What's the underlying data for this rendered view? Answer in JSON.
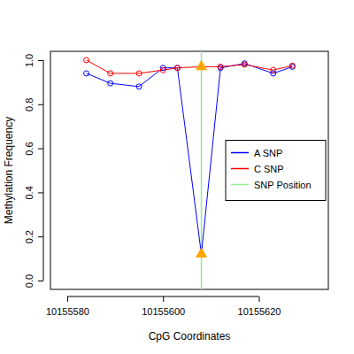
{
  "chart_data": {
    "type": "line",
    "x_label": "CpG Coordinates",
    "y_label": "Methylation Frequency",
    "x": [
      10155584,
      10155589,
      10155595,
      10155600,
      10155603,
      10155608,
      10155612,
      10155617,
      10155623,
      10155627
    ],
    "series": [
      {
        "name": "A SNP",
        "color": "#0000ff",
        "marker": "circle",
        "line_style": "solid",
        "values": [
          0.94,
          0.895,
          0.88,
          0.965,
          0.965,
          0.12,
          0.965,
          0.985,
          0.94,
          0.97
        ]
      },
      {
        "name": "C SNP",
        "color": "#ff0000",
        "marker": "circle",
        "line_style": "solid",
        "values": [
          1.0,
          0.94,
          0.94,
          0.955,
          0.965,
          0.97,
          0.97,
          0.98,
          0.955,
          0.975
        ]
      }
    ],
    "vlines": [
      {
        "name": "SNP Position",
        "color": "#90ee90",
        "x": 10155608
      }
    ],
    "xlim": [
      10155576.5,
      10155634.5
    ],
    "xticks": [
      10155580,
      10155600,
      10155620
    ],
    "ylim": [
      -0.04,
      1.04
    ],
    "yticks": [
      {
        "value": 0,
        "label": "0.0"
      },
      {
        "value": 0.2,
        "label": "0.2"
      },
      {
        "value": 0.4,
        "label": "0.4"
      },
      {
        "value": 0.6,
        "label": "0.6"
      },
      {
        "value": 0.8,
        "label": "0.8"
      },
      {
        "value": 1,
        "label": "1.0"
      }
    ],
    "legend": "right",
    "grid": false
  }
}
